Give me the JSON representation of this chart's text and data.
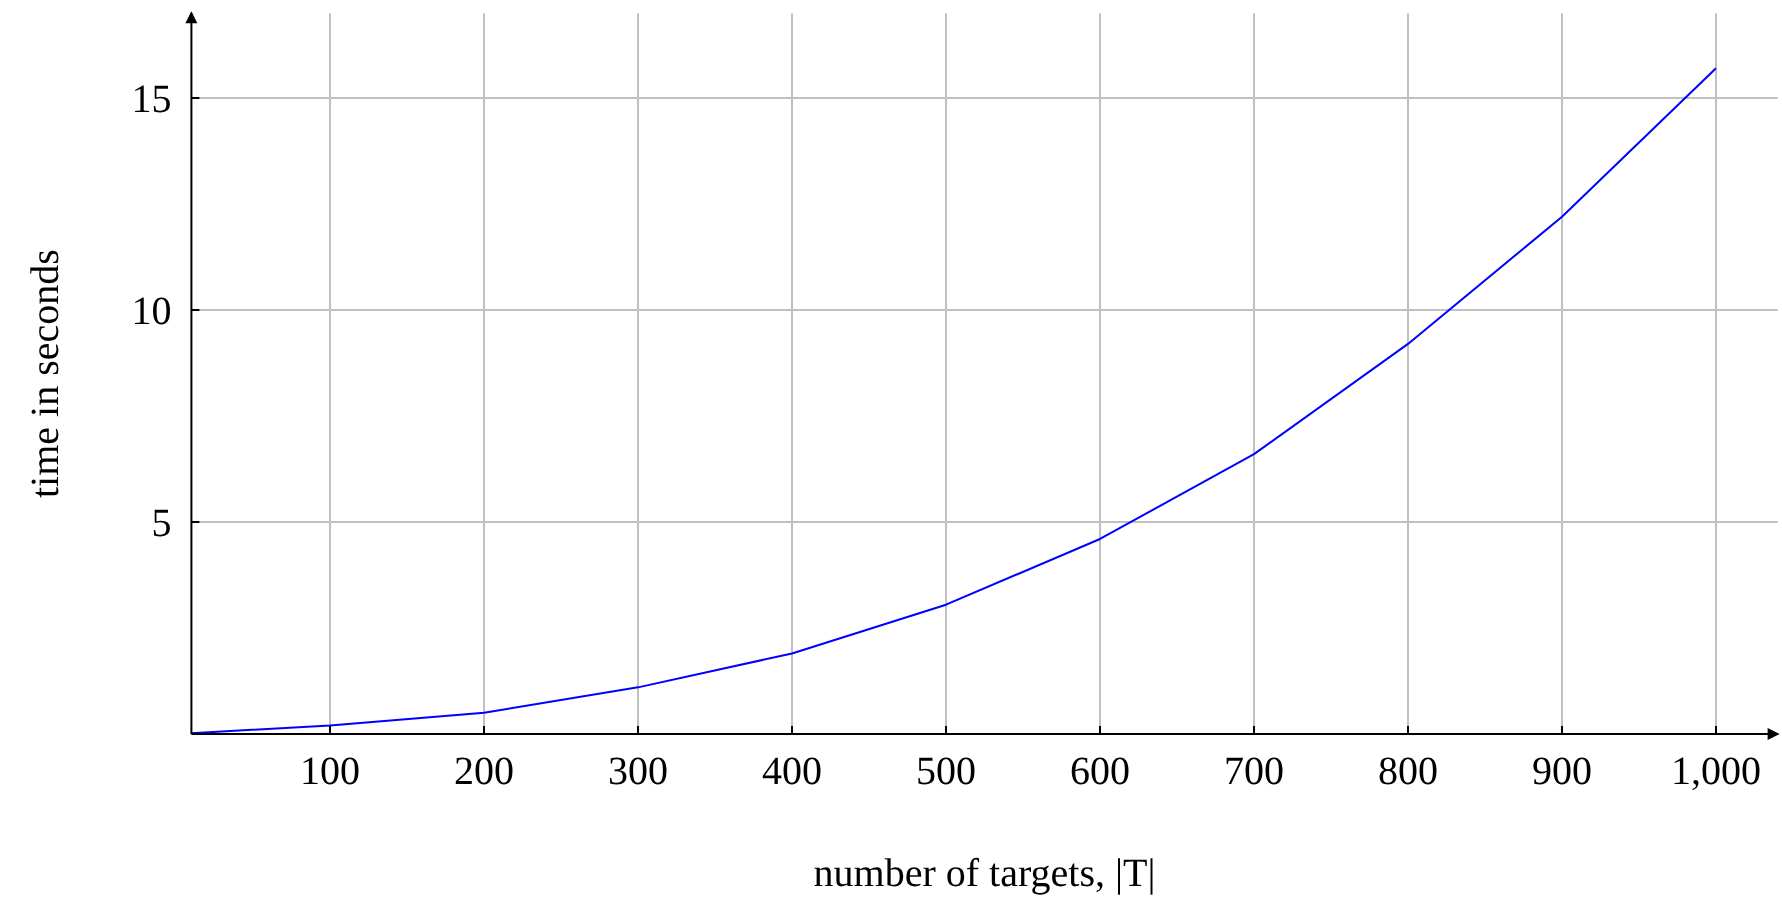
{
  "chart_data": {
    "type": "line",
    "xlabel": "number of targets, |T|",
    "ylabel": "time in seconds",
    "x": [
      10,
      100,
      200,
      300,
      400,
      500,
      600,
      700,
      800,
      900,
      1000
    ],
    "series": [
      {
        "color": "#0000ff",
        "values": [
          0.02,
          0.2,
          0.5,
          1.1,
          1.9,
          3.05,
          4.6,
          6.6,
          9.2,
          12.2,
          15.7
        ]
      }
    ],
    "xlim": [
      10,
      1040
    ],
    "ylim": [
      0,
      17
    ],
    "xticks": [
      100,
      200,
      300,
      400,
      500,
      600,
      700,
      800,
      900,
      {
        "value": 1000,
        "label": "1,000"
      }
    ],
    "yticks": [
      5,
      10,
      15
    ],
    "grid": true,
    "marker": "none",
    "line_style": "solid"
  }
}
